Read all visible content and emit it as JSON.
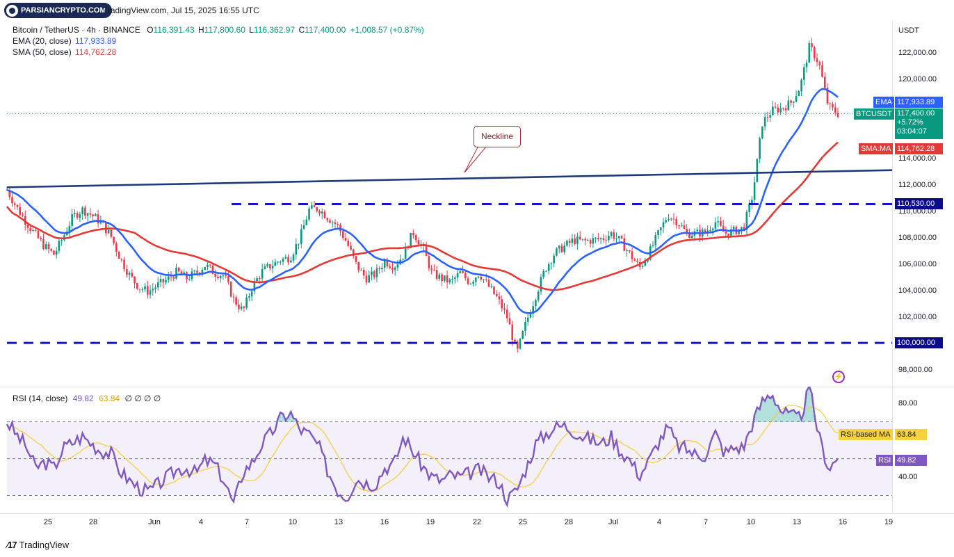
{
  "header": {
    "logo_text": "PARSIANCRYPTO.COM",
    "published": "TradingView.com, Jul 15, 2025 16:55 UTC"
  },
  "legend": {
    "symbol": "Bitcoin / TetherUS · 4h · BINANCE",
    "o_label": "O",
    "o": "116,391.43",
    "h_label": "H",
    "h": "117,800.60",
    "l_label": "L",
    "l": "116,362.97",
    "c_label": "C",
    "c": "117,400.00",
    "change": "+1,008.57 (+0.87%)",
    "ema_label": "EMA (20, close)",
    "ema_value": "117,933.89",
    "sma_label": "SMA (50, close)",
    "sma_value": "114,762.28"
  },
  "rsi_legend": {
    "label": "RSI (14, close)",
    "rsi": "49.82",
    "ma": "63.84",
    "rest": "∅ ∅ ∅ ∅"
  },
  "currency": "USDT",
  "annotation": {
    "neckline": "Neckline"
  },
  "tags": {
    "ema_name": "EMA",
    "ema_value": "117,933.89",
    "btc_name": "BTCUSDT",
    "btc_price": "117,400.00",
    "btc_change": "+5.72%",
    "btc_timer": "03:04:07",
    "sma_name": "SMA:MA",
    "sma_value": "114,762.28",
    "level_1": "110,530.00",
    "level_2": "100,000.00",
    "rsi_ma_name": "RSI-based MA",
    "rsi_ma_value": "63.84",
    "rsi_name": "RSI",
    "rsi_value": "49.82"
  },
  "price_axis_labels": [
    "122,000.00",
    "120,000.00",
    "114,000.00",
    "112,000.00",
    "110,000.00",
    "108,000.00",
    "106,000.00",
    "104,000.00",
    "102,000.00",
    "98,000.00"
  ],
  "rsi_axis_labels": [
    "80.00",
    "40.00"
  ],
  "date_labels": [
    "25",
    "28",
    "Jun",
    "4",
    "7",
    "10",
    "13",
    "16",
    "19",
    "22",
    "25",
    "28",
    "Jul",
    "4",
    "7",
    "10",
    "13",
    "16",
    "19"
  ],
  "footer": {
    "brand": "TradingView"
  },
  "colors": {
    "up": "#089981",
    "down": "#f23645",
    "ema": "#2962ff",
    "sma": "#e53935",
    "trend": "#1e3a78",
    "dashed": "#1515c8",
    "rsi": "#7e57c2",
    "rsi_ma": "#f5cc3c"
  },
  "chart_data": {
    "type": "candlestick",
    "symbol": "BTCUSDT",
    "interval": "4h",
    "ylim": [
      97500,
      123500
    ],
    "last_price": 117400.0,
    "ema20_last": 117933.89,
    "sma50_last": 114762.28,
    "horizontal_levels": [
      110530,
      100000
    ],
    "trendline": {
      "start": [
        "May 22",
        111800
      ],
      "end": [
        "Jul 19",
        113100
      ],
      "label": "Neckline"
    },
    "x_ticks": [
      "25",
      "28",
      "Jun",
      "4",
      "7",
      "10",
      "13",
      "16",
      "19",
      "22",
      "25",
      "28",
      "Jul",
      "4",
      "7",
      "10",
      "13",
      "16",
      "19"
    ],
    "price_path": [
      [
        0,
        111600
      ],
      [
        1,
        110300
      ],
      [
        2,
        109200
      ],
      [
        3,
        108200
      ],
      [
        4,
        107300
      ],
      [
        5,
        106700
      ],
      [
        6,
        108100
      ],
      [
        7,
        109600
      ],
      [
        8,
        110100
      ],
      [
        9,
        109700
      ],
      [
        10,
        109100
      ],
      [
        11,
        108100
      ],
      [
        12,
        106400
      ],
      [
        13,
        105100
      ],
      [
        14,
        104200
      ],
      [
        15,
        103900
      ],
      [
        16,
        104400
      ],
      [
        17,
        104800
      ],
      [
        18,
        105400
      ],
      [
        19,
        104900
      ],
      [
        20,
        105300
      ],
      [
        21,
        105900
      ],
      [
        22,
        105300
      ],
      [
        23,
        105100
      ],
      [
        24,
        103300
      ],
      [
        25,
        102400
      ],
      [
        26,
        104300
      ],
      [
        27,
        105400
      ],
      [
        28,
        105900
      ],
      [
        29,
        106300
      ],
      [
        30,
        106500
      ],
      [
        31,
        107900
      ],
      [
        32,
        110100
      ],
      [
        33,
        110200
      ],
      [
        34,
        109500
      ],
      [
        35,
        108900
      ],
      [
        36,
        107600
      ],
      [
        37,
        105900
      ],
      [
        38,
        104900
      ],
      [
        39,
        105200
      ],
      [
        40,
        106200
      ],
      [
        41,
        105800
      ],
      [
        42,
        106700
      ],
      [
        43,
        108400
      ],
      [
        44,
        107300
      ],
      [
        45,
        105300
      ],
      [
        46,
        104900
      ],
      [
        47,
        104600
      ],
      [
        48,
        105300
      ],
      [
        49,
        104600
      ],
      [
        50,
        105300
      ],
      [
        51,
        104300
      ],
      [
        52,
        103300
      ],
      [
        53,
        101900
      ],
      [
        54,
        99200
      ],
      [
        55,
        101600
      ],
      [
        56,
        103600
      ],
      [
        57,
        105600
      ],
      [
        58,
        106800
      ],
      [
        59,
        107300
      ],
      [
        60,
        107800
      ],
      [
        61,
        107700
      ],
      [
        62,
        107800
      ],
      [
        63,
        107900
      ],
      [
        64,
        108300
      ],
      [
        65,
        107700
      ],
      [
        66,
        106700
      ],
      [
        67,
        105700
      ],
      [
        68,
        106800
      ],
      [
        69,
        108300
      ],
      [
        70,
        109700
      ],
      [
        71,
        109200
      ],
      [
        72,
        108300
      ],
      [
        73,
        108300
      ],
      [
        74,
        108400
      ],
      [
        75,
        109200
      ],
      [
        76,
        108300
      ],
      [
        77,
        108500
      ],
      [
        78,
        108700
      ],
      [
        79,
        111300
      ],
      [
        80,
        116700
      ],
      [
        81,
        117600
      ],
      [
        82,
        117800
      ],
      [
        83,
        118200
      ],
      [
        84,
        119400
      ],
      [
        85,
        122500
      ],
      [
        86,
        121200
      ],
      [
        87,
        117900
      ],
      [
        88,
        117400
      ]
    ],
    "rsi": {
      "value": 49.82,
      "ma": 63.84,
      "levels": [
        70,
        50,
        30
      ],
      "ylim": [
        20,
        90
      ],
      "path": [
        [
          0,
          70
        ],
        [
          1,
          63
        ],
        [
          2,
          57
        ],
        [
          3,
          45
        ],
        [
          4,
          48
        ],
        [
          5,
          45
        ],
        [
          6,
          56
        ],
        [
          7,
          59
        ],
        [
          8,
          62
        ],
        [
          9,
          58
        ],
        [
          10,
          54
        ],
        [
          11,
          53
        ],
        [
          12,
          43
        ],
        [
          13,
          38
        ],
        [
          14,
          34
        ],
        [
          15,
          32
        ],
        [
          16,
          36
        ],
        [
          17,
          40
        ],
        [
          18,
          44
        ],
        [
          19,
          45
        ],
        [
          20,
          42
        ],
        [
          21,
          49
        ],
        [
          22,
          47
        ],
        [
          23,
          38
        ],
        [
          24,
          25
        ],
        [
          25,
          43
        ],
        [
          26,
          48
        ],
        [
          27,
          58
        ],
        [
          28,
          64
        ],
        [
          29,
          72
        ],
        [
          30,
          75
        ],
        [
          31,
          66
        ],
        [
          32,
          63
        ],
        [
          33,
          57
        ],
        [
          34,
          43
        ],
        [
          35,
          33
        ],
        [
          36,
          29
        ],
        [
          37,
          39
        ],
        [
          38,
          37
        ],
        [
          39,
          36
        ],
        [
          40,
          45
        ],
        [
          41,
          47
        ],
        [
          42,
          62
        ],
        [
          43,
          54
        ],
        [
          44,
          46
        ],
        [
          45,
          40
        ],
        [
          46,
          38
        ],
        [
          47,
          41
        ],
        [
          48,
          40
        ],
        [
          49,
          42
        ],
        [
          50,
          44
        ],
        [
          51,
          40
        ],
        [
          52,
          38
        ],
        [
          53,
          28
        ],
        [
          54,
          33
        ],
        [
          55,
          45
        ],
        [
          56,
          58
        ],
        [
          57,
          63
        ],
        [
          58,
          67
        ],
        [
          59,
          68
        ],
        [
          60,
          65
        ],
        [
          61,
          62
        ],
        [
          62,
          60
        ],
        [
          63,
          58
        ],
        [
          64,
          62
        ],
        [
          65,
          54
        ],
        [
          66,
          49
        ],
        [
          67,
          41
        ],
        [
          68,
          49
        ],
        [
          69,
          59
        ],
        [
          70,
          67
        ],
        [
          71,
          57
        ],
        [
          72,
          55
        ],
        [
          73,
          52
        ],
        [
          74,
          52
        ],
        [
          75,
          64
        ],
        [
          76,
          53
        ],
        [
          77,
          56
        ],
        [
          78,
          56
        ],
        [
          79,
          70
        ],
        [
          80,
          81
        ],
        [
          81,
          86
        ],
        [
          82,
          76
        ],
        [
          83,
          73
        ],
        [
          84,
          72
        ],
        [
          85,
          88
        ],
        [
          86,
          62
        ],
        [
          87,
          45
        ],
        [
          88,
          49.82
        ]
      ]
    }
  }
}
